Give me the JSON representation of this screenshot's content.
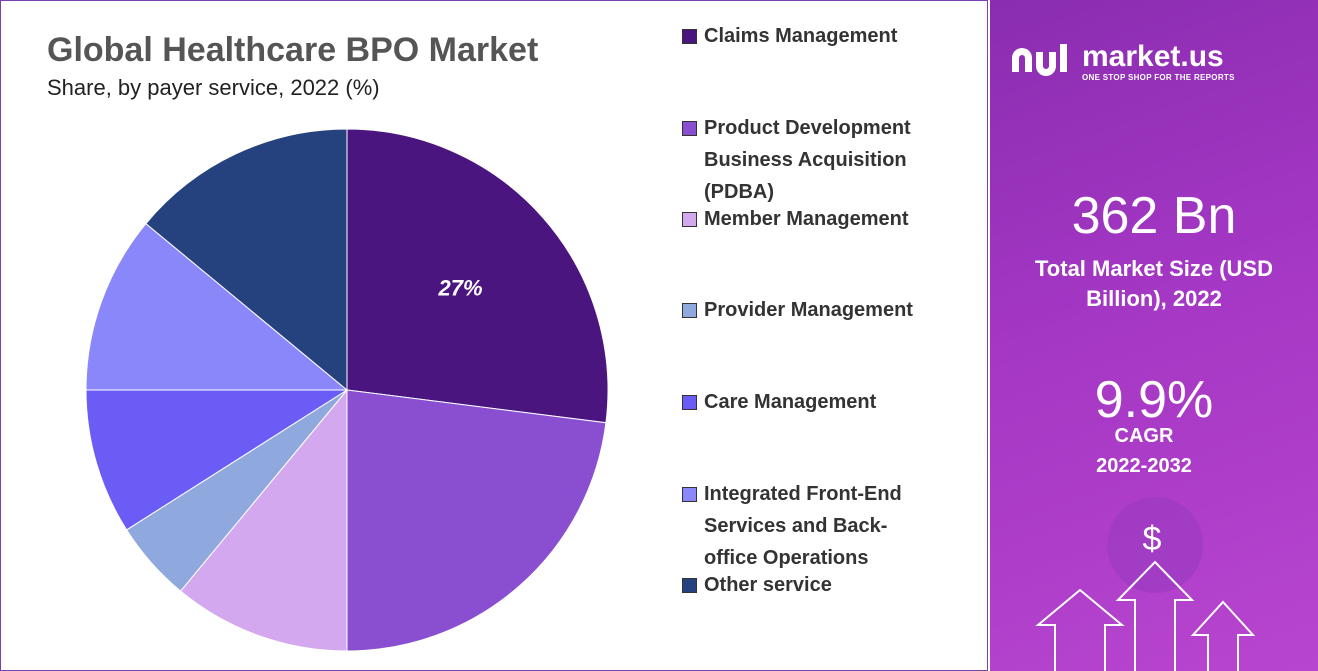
{
  "chart_data": {
    "type": "pie",
    "title": "Global Healthcare BPO Market",
    "subtitle": "Share, by payer service, 2022 (%)",
    "categories": [
      "Claims Management",
      "Product Development Business Acquisition (PDBA)",
      "Member Management",
      "Provider Management",
      "Care Management",
      "Integrated Front-End Services and Back-office Operations",
      "Other service"
    ],
    "values": [
      27,
      23,
      11,
      5,
      9,
      11,
      14
    ],
    "value_labels": [
      "27%",
      null,
      null,
      null,
      null,
      null,
      null
    ],
    "colors": [
      "#4b1580",
      "#8a4fd0",
      "#d4a8ef",
      "#8fa8de",
      "#6a5cf5",
      "#8a87fb",
      "#26427e"
    ]
  },
  "panel": {
    "logo": "market.us",
    "tagline": "ONE STOP SHOP FOR THE REPORTS",
    "market_size": "362 Bn",
    "market_size_label": "Total Market Size (USD Billion), 2022",
    "cagr": "9.9%",
    "cagr_label": "CAGR",
    "cagr_period": "2022-2032",
    "symbol": "$"
  }
}
